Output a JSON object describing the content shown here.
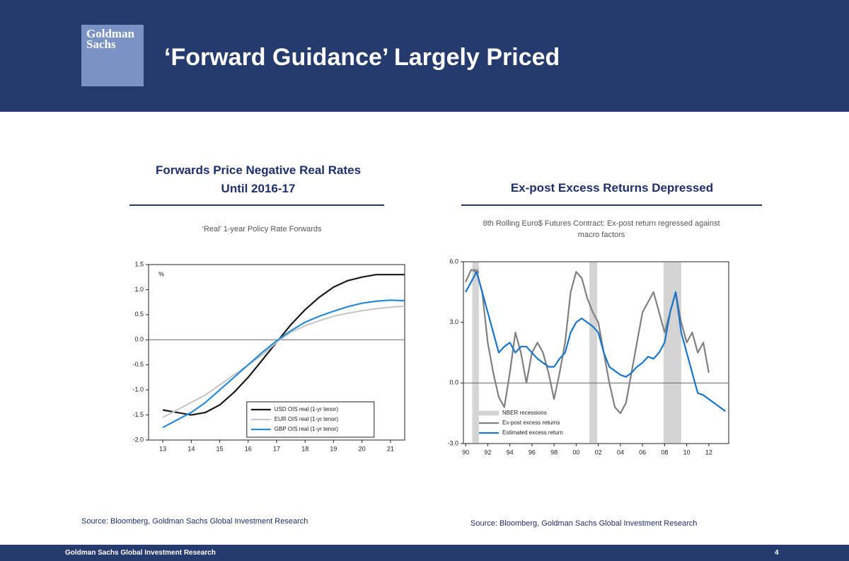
{
  "header": {
    "logo": "Goldman Sachs",
    "title": "‘Forward Guidance’ Largely Priced"
  },
  "chart_data": [
    {
      "type": "line",
      "title": "Forwards Price Negative Real Rates Until 2016-17",
      "subtitle": "‘Real’ 1-year Policy Rate Forwards",
      "y_unit": "%",
      "source": "Source: Bloomberg, Goldman Sachs Global Investment Research",
      "legend": "lower-center",
      "x": [
        13,
        13.5,
        14,
        14.5,
        15,
        15.5,
        16,
        16.5,
        17,
        17.5,
        18,
        18.5,
        19,
        19.5,
        20,
        20.5,
        21,
        21.5
      ],
      "xlim": [
        12.5,
        21.5
      ],
      "xticks": [
        13,
        14,
        15,
        16,
        17,
        18,
        19,
        20,
        21
      ],
      "ylim": [
        -2,
        1.5
      ],
      "yticks": [
        {
          "value": -2,
          "label": "-2.0"
        },
        -1.5,
        {
          "value": -1,
          "label": "-1.0"
        },
        -0.5,
        {
          "value": 0,
          "label": "0.0"
        },
        0.5,
        {
          "value": 1,
          "label": "1.0"
        },
        1.5
      ],
      "series": [
        {
          "name": "USD OIS real (1-yr tenor)",
          "color": "#1a1a1a",
          "values": [
            -1.4,
            -1.45,
            -1.5,
            -1.45,
            -1.3,
            -1.05,
            -0.75,
            -0.4,
            -0.05,
            0.3,
            0.6,
            0.85,
            1.05,
            1.18,
            1.25,
            1.3,
            1.3,
            1.3
          ]
        },
        {
          "name": "EUR OIS real (1-yr tenor)",
          "color": "#c8c8c8",
          "values": [
            -1.55,
            -1.4,
            -1.25,
            -1.1,
            -0.9,
            -0.7,
            -0.5,
            -0.3,
            -0.05,
            0.15,
            0.28,
            0.38,
            0.47,
            0.53,
            0.58,
            0.62,
            0.65,
            0.67
          ]
        },
        {
          "name": "GBP OIS real (1-yr tenor)",
          "color": "#2a8ad4",
          "values": [
            -1.75,
            -1.6,
            -1.45,
            -1.25,
            -1.0,
            -0.75,
            -0.5,
            -0.25,
            -0.02,
            0.18,
            0.35,
            0.47,
            0.57,
            0.66,
            0.73,
            0.77,
            0.79,
            0.78
          ]
        }
      ]
    },
    {
      "type": "line",
      "title": "Ex-post Excess Returns Depressed",
      "subtitle": "8th Rolling Euro$ Futures Contract: Ex-post return regressed against macro factors",
      "y_unit": "%",
      "source": "Source: Bloomberg, Goldman Sachs Global Investment Research",
      "legend": "lower-left",
      "x": [
        1990,
        1990.5,
        1991,
        1991.5,
        1992,
        1992.5,
        1993,
        1993.5,
        1994,
        1994.5,
        1995,
        1995.5,
        1996,
        1996.5,
        1997,
        1997.5,
        1998,
        1998.5,
        1999,
        1999.5,
        2000,
        2000.5,
        2001,
        2001.5,
        2002,
        2002.5,
        2003,
        2003.5,
        2004,
        2004.5,
        2005,
        2005.5,
        2006,
        2006.5,
        2007,
        2007.5,
        2008,
        2008.5,
        2009,
        2009.5,
        2010,
        2010.5,
        2011,
        2011.5,
        2012,
        2012.5,
        2013,
        2013.5
      ],
      "xlim": [
        1989.8,
        2013.8
      ],
      "xticks": [
        {
          "value": 1990,
          "label": "90"
        },
        {
          "value": 1992,
          "label": "92"
        },
        {
          "value": 1994,
          "label": "94"
        },
        {
          "value": 1996,
          "label": "96"
        },
        {
          "value": 1998,
          "label": "98"
        },
        {
          "value": 2000,
          "label": "00"
        },
        {
          "value": 2002,
          "label": "02"
        },
        {
          "value": 2004,
          "label": "04"
        },
        {
          "value": 2006,
          "label": "06"
        },
        {
          "value": 2008,
          "label": "08"
        },
        {
          "value": 2010,
          "label": "10"
        },
        {
          "value": 2012,
          "label": "12"
        }
      ],
      "ylim": [
        -3,
        6
      ],
      "yticks": [
        {
          "value": -3,
          "label": "-3.0"
        },
        {
          "value": 0,
          "label": "0.0"
        },
        {
          "value": 3,
          "label": "3.0"
        },
        {
          "value": 6,
          "label": "6.0"
        }
      ],
      "recessions": {
        "name": "NBER recessions",
        "color": "#d4d4d4",
        "spans": [
          [
            1990.6,
            1991.2
          ],
          [
            2001.2,
            2001.9
          ],
          [
            2007.9,
            2009.5
          ]
        ]
      },
      "series": [
        {
          "name": "Ex-post excess returns",
          "color": "#808080",
          "values": [
            5.0,
            5.6,
            5.5,
            4.5,
            2.0,
            0.5,
            -0.7,
            -1.2,
            0.5,
            2.5,
            1.5,
            0.0,
            1.5,
            2.0,
            1.5,
            0.5,
            -0.8,
            0.5,
            2.0,
            4.5,
            5.5,
            5.2,
            4.2,
            3.5,
            3.0,
            1.5,
            0.0,
            -1.2,
            -1.5,
            -1.0,
            0.5,
            2.0,
            3.5,
            4.0,
            4.5,
            3.5,
            2.5,
            3.5,
            4.5,
            3.0,
            2.0,
            2.5,
            1.5,
            2.0,
            0.5,
            null,
            null,
            null
          ]
        },
        {
          "name": "Estimated excess return",
          "color": "#1a75c9",
          "values": [
            4.5,
            5.0,
            5.5,
            4.5,
            3.5,
            2.5,
            1.5,
            1.8,
            2.0,
            1.5,
            1.8,
            1.8,
            1.5,
            1.2,
            1.0,
            0.8,
            0.8,
            1.2,
            1.5,
            2.5,
            3.0,
            3.2,
            3.0,
            2.8,
            2.5,
            1.5,
            0.8,
            0.6,
            0.4,
            0.3,
            0.5,
            0.8,
            1.0,
            1.3,
            1.2,
            1.5,
            2.0,
            3.5,
            4.5,
            2.5,
            1.5,
            0.5,
            -0.5,
            -0.6,
            -0.8,
            -1.0,
            -1.2,
            -1.4
          ]
        }
      ]
    }
  ],
  "footer": {
    "left": "Goldman Sachs Global Investment Research",
    "page": "4"
  }
}
